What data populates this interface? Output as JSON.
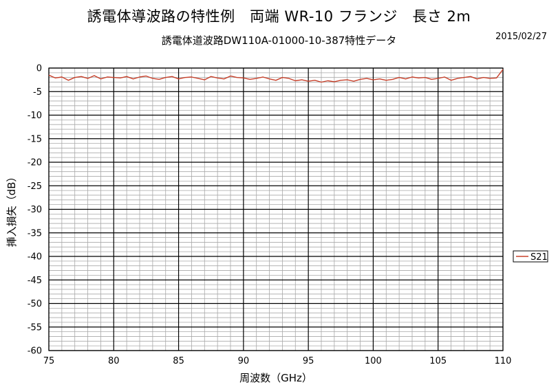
{
  "header": {
    "title": "誘電体導波路の特性例　両端 WR-10 フランジ　長さ 2m",
    "subtitle": "誘電体道波路DW110A-01000-10-387特性データ",
    "date": "2015/02/27"
  },
  "chart_data": {
    "type": "line",
    "xlabel": "周波数（GHz）",
    "ylabel": "挿入損失（dB）",
    "xlim": [
      75,
      110
    ],
    "ylim": [
      -60,
      0
    ],
    "x_ticks": [
      75,
      80,
      85,
      90,
      95,
      100,
      105,
      110
    ],
    "y_ticks": [
      0,
      -5,
      -10,
      -15,
      -20,
      -25,
      -30,
      -35,
      -40,
      -45,
      -50,
      -55,
      -60
    ],
    "x_tick_labels": [
      "75",
      "80",
      "85",
      "90",
      "95",
      "100",
      "105",
      "110"
    ],
    "y_tick_labels": [
      "0",
      "-5",
      "-10",
      "-15",
      "-20",
      "-25",
      "-30",
      "-35",
      "-40",
      "-45",
      "-50",
      "-55",
      "-60"
    ],
    "grid": true,
    "legend_position": "right",
    "series": [
      {
        "name": "S21",
        "color": "#c8402a",
        "x": [
          75,
          75.5,
          76,
          76.5,
          77,
          77.5,
          78,
          78.5,
          79,
          79.5,
          80,
          80.5,
          81,
          81.5,
          82,
          82.5,
          83,
          83.5,
          84,
          84.5,
          85,
          85.5,
          86,
          86.5,
          87,
          87.5,
          88,
          88.5,
          89,
          89.5,
          90,
          90.5,
          91,
          91.5,
          92,
          92.5,
          93,
          93.5,
          94,
          94.5,
          95,
          95.5,
          96,
          96.5,
          97,
          97.5,
          98,
          98.5,
          99,
          99.5,
          100,
          100.5,
          101,
          101.5,
          102,
          102.5,
          103,
          103.5,
          104,
          104.5,
          105,
          105.5,
          106,
          106.5,
          107,
          107.5,
          108,
          108.5,
          109,
          109.5,
          110
        ],
        "values": [
          -1.5,
          -2.1,
          -1.9,
          -2.6,
          -2.0,
          -1.8,
          -2.2,
          -1.6,
          -2.3,
          -1.9,
          -2.0,
          -2.1,
          -1.8,
          -2.3,
          -1.9,
          -1.7,
          -2.2,
          -2.4,
          -2.0,
          -1.8,
          -2.3,
          -2.0,
          -1.9,
          -2.2,
          -2.5,
          -1.8,
          -2.1,
          -2.3,
          -1.7,
          -2.0,
          -2.1,
          -2.4,
          -2.2,
          -1.9,
          -2.3,
          -2.6,
          -2.0,
          -2.2,
          -2.7,
          -2.5,
          -2.8,
          -2.6,
          -3.0,
          -2.7,
          -2.9,
          -2.6,
          -2.5,
          -2.8,
          -2.4,
          -2.2,
          -2.5,
          -2.3,
          -2.6,
          -2.4,
          -2.0,
          -2.3,
          -1.9,
          -2.1,
          -2.0,
          -2.4,
          -2.2,
          -1.9,
          -2.6,
          -2.2,
          -2.0,
          -1.8,
          -2.3,
          -2.0,
          -2.2,
          -2.1,
          -0.3
        ]
      }
    ]
  }
}
